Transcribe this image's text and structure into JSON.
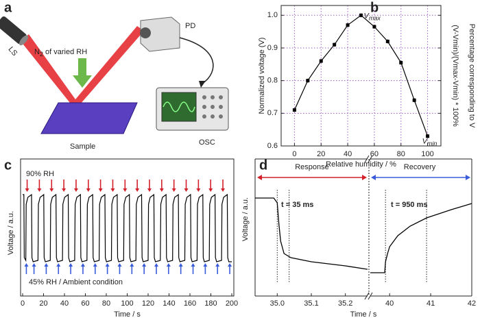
{
  "diagram": {
    "panel": "a",
    "ls": "LS",
    "gas": {
      "base": "N",
      "sub": "2",
      "rest": " of varied RH"
    },
    "pd": "PD",
    "sample": "Sample",
    "osc": "OSC"
  },
  "chart_data": [
    {
      "type": "line",
      "panel": "b",
      "xlabel": "Relative humidity / %",
      "ylabel": "Normalized voltage (V)",
      "y2label": [
        "(V-Vmin)/(Vmax-Vmin) * 100%",
        "Percentage corresponding to V"
      ],
      "annotations": [
        {
          "base": "V",
          "sub": "max"
        },
        {
          "base": "V",
          "sub": "min"
        }
      ],
      "x": [
        0,
        10,
        20,
        30,
        40,
        50,
        60,
        70,
        80,
        90,
        100
      ],
      "values": [
        0.71,
        0.8,
        0.86,
        0.91,
        0.97,
        1.0,
        0.965,
        0.92,
        0.855,
        0.74,
        0.63
      ],
      "errors": [
        0.006,
        0.006,
        0.006,
        0.006,
        0.006,
        0.006,
        0.006,
        0.006,
        0.006,
        0.006,
        0.006
      ],
      "color": "#000000",
      "grid": true,
      "xlim": [
        -10,
        110
      ],
      "xticks": [
        0,
        20,
        40,
        60,
        80,
        100
      ],
      "ylim": [
        0.6,
        1.03
      ],
      "yticks": [
        0.6,
        0.7,
        0.8,
        0.9,
        {
          "value": 1,
          "label": "1.0"
        }
      ]
    },
    {
      "type": "line",
      "panel": "c",
      "xlabel": "Time / s",
      "ylabel": "Voltage / a.u.",
      "annotations": [
        "90% RH",
        "45% RH / Ambient condition"
      ],
      "x": [
        0,
        1.2,
        1.6,
        3,
        3.4,
        5,
        8.5,
        8.9,
        10,
        14.7,
        15.1,
        16.7,
        20.2,
        20.6,
        21.7,
        26.4,
        26.8,
        28.4,
        31.9,
        32.3,
        33.4,
        38.1,
        38.5,
        40.1,
        43.6,
        44,
        45.1,
        49.8,
        50.2,
        51.8,
        55.3,
        55.7,
        56.8,
        61.5,
        61.9,
        63.5,
        67,
        67.4,
        68.5,
        73.2,
        73.6,
        75.2,
        78.7,
        79.1,
        80.2,
        84.9,
        85.3,
        86.9,
        90.4,
        90.8,
        91.9,
        96.6,
        97,
        98.6,
        102.1,
        102.5,
        103.6,
        108.3,
        108.7,
        110.3,
        113.8,
        114.2,
        115.3,
        120,
        120.4,
        122,
        125.5,
        125.9,
        127,
        131.7,
        132.1,
        133.7,
        137.2,
        137.6,
        138.7,
        143.4,
        143.8,
        145.4,
        148.9,
        149.3,
        150.4,
        155.1,
        155.5,
        157.1,
        160.6,
        161,
        162.1,
        166.8,
        167.2,
        168.8,
        172.3,
        172.7,
        173.8,
        178.5,
        178.9,
        180.5,
        184,
        184.4,
        185.5,
        190.2,
        190.6,
        192.2,
        195.7,
        196.1,
        197.2,
        200
      ],
      "values": [
        0.74,
        0.74,
        0.28,
        0.26,
        0.67,
        0.72,
        0.74,
        0.28,
        0.25,
        0.26,
        0.67,
        0.72,
        0.74,
        0.28,
        0.25,
        0.26,
        0.67,
        0.72,
        0.74,
        0.28,
        0.25,
        0.26,
        0.67,
        0.72,
        0.74,
        0.28,
        0.25,
        0.26,
        0.67,
        0.72,
        0.74,
        0.28,
        0.25,
        0.26,
        0.67,
        0.72,
        0.74,
        0.28,
        0.25,
        0.26,
        0.67,
        0.72,
        0.74,
        0.28,
        0.25,
        0.26,
        0.67,
        0.72,
        0.74,
        0.28,
        0.25,
        0.26,
        0.67,
        0.72,
        0.74,
        0.28,
        0.25,
        0.26,
        0.67,
        0.72,
        0.74,
        0.28,
        0.25,
        0.26,
        0.67,
        0.72,
        0.74,
        0.28,
        0.25,
        0.26,
        0.67,
        0.72,
        0.74,
        0.28,
        0.25,
        0.26,
        0.67,
        0.72,
        0.74,
        0.28,
        0.25,
        0.26,
        0.67,
        0.72,
        0.74,
        0.28,
        0.25,
        0.26,
        0.67,
        0.72,
        0.74,
        0.28,
        0.25,
        0.26,
        0.67,
        0.72,
        0.74,
        0.28,
        0.25,
        0.26,
        0.67,
        0.72,
        0.74,
        0.28,
        0.25,
        0.25
      ],
      "color": "#000000",
      "xlim": [
        0,
        200
      ],
      "xticks": [
        0,
        20,
        40,
        60,
        80,
        100,
        120,
        140,
        160,
        180,
        200
      ],
      "ylim": [
        0,
        1
      ]
    },
    {
      "type": "broken-line",
      "panel": "d",
      "xlabel": "Time / s",
      "ylabel": "Voltage / a.u.",
      "annotations": [
        "Response",
        "Recovery",
        "t = 35 ms",
        "t = 950 ms"
      ],
      "color": "#000000",
      "ylim": [
        0,
        1
      ],
      "segments": [
        {
          "xlim": [
            34.935,
            35.265
          ],
          "xticks": [
            {
              "value": 35,
              "label": "35.0"
            },
            35.1,
            35.2
          ],
          "vlines": [
            35.0,
            35.035
          ],
          "x": [
            34.935,
            34.99,
            35.0,
            35.005,
            35.01,
            35.02,
            35.04,
            35.1,
            35.2,
            35.265
          ],
          "values": [
            0.715,
            0.715,
            0.68,
            0.52,
            0.4,
            0.31,
            0.28,
            0.25,
            0.22,
            0.195
          ]
        },
        {
          "xlim": [
            39.53,
            42
          ],
          "xticks": [
            40,
            41,
            42
          ],
          "vlines": [
            39.9,
            40.9
          ],
          "x": [
            39.53,
            39.88,
            39.9,
            39.95,
            40.0,
            40.2,
            40.5,
            40.9,
            41.5,
            42
          ],
          "values": [
            0.17,
            0.17,
            0.25,
            0.31,
            0.36,
            0.44,
            0.51,
            0.57,
            0.63,
            0.675
          ]
        }
      ]
    }
  ]
}
